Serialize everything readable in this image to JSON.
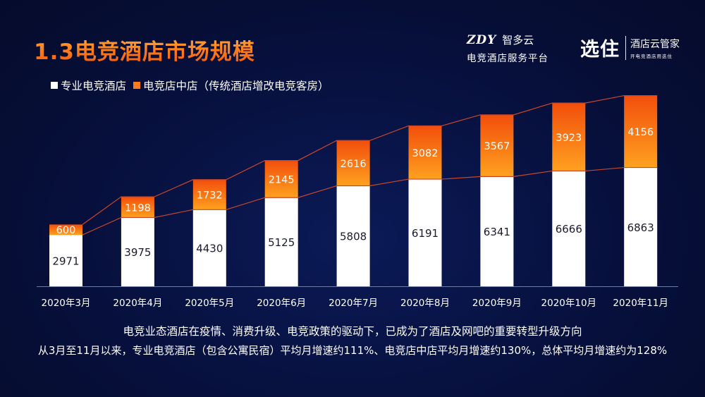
{
  "header": {
    "title": "1.3电竞酒店市场规模",
    "brand_zdy": "ZDY",
    "brand_zdy_cn": "智多云",
    "brand_zdy_sub": "电竞酒店服务平台",
    "brand_logo": "选住",
    "brand_name": "酒店云管家",
    "brand_tagline": "开电竞酒店用迭住"
  },
  "colors": {
    "background": "#07103c",
    "series_pro": "#ffffff",
    "series_mid_top": "#f24e0c",
    "series_mid_bottom": "#ffa11f",
    "trend_line": "#c8472a",
    "title_orange": "#ff8a1e"
  },
  "chart_data": {
    "type": "bar",
    "stacked": true,
    "categories": [
      "2020年3月",
      "2020年4月",
      "2020年5月",
      "2020年6月",
      "2020年7月",
      "2020年8月",
      "2020年9月",
      "2020年10月",
      "2020年11月"
    ],
    "series": [
      {
        "name": "专业电竞酒店",
        "values": [
          2971,
          3975,
          4430,
          5125,
          5808,
          6191,
          6341,
          6666,
          6863
        ]
      },
      {
        "name": "电竞店中店（传统酒店增改电竞客房）",
        "values": [
          600,
          1198,
          1732,
          2145,
          2616,
          3082,
          3567,
          3923,
          4156
        ]
      }
    ],
    "legend_position": "top-left",
    "grid": false,
    "data_labels": true
  },
  "captions": {
    "line1": "电竞业态酒店在疫情、消费升级、电竞政策的驱动下，已成为了酒店及网吧的重要转型升级方向",
    "line2": "从3月至11月以来，专业电竞酒店（包含公寓民宿）平均月增速约111%、电竞店中店平均月增速约130%，总体平均月增速约为128%"
  }
}
